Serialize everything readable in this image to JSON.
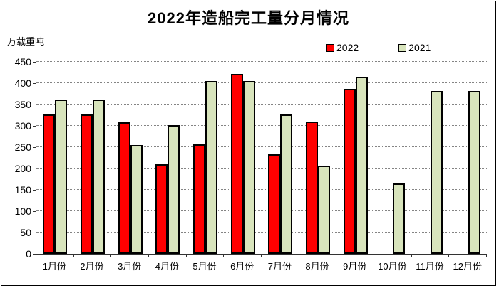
{
  "title": "2022年造船完工量分月情况",
  "y_axis_unit": "万载重吨",
  "legend": {
    "items": [
      {
        "label": "2022",
        "color": "#ff0000"
      },
      {
        "label": "2021",
        "color": "#d8e4bc"
      }
    ]
  },
  "chart_data": {
    "type": "bar",
    "title": "2022年造船完工量分月情况",
    "ylabel": "万载重吨",
    "xlabel": "",
    "categories": [
      "1月份",
      "2月份",
      "3月份",
      "4月份",
      "5月份",
      "6月份",
      "7月份",
      "8月份",
      "9月份",
      "10月份",
      "11月份",
      "12月份"
    ],
    "series": [
      {
        "name": "2022",
        "color": "#ff0000",
        "values": [
          327,
          327,
          309,
          210,
          256,
          422,
          234,
          310,
          386,
          null,
          null,
          null
        ]
      },
      {
        "name": "2021",
        "color": "#d8e4bc",
        "values": [
          361,
          361,
          255,
          302,
          405,
          405,
          327,
          207,
          415,
          165,
          381,
          381
        ]
      }
    ],
    "ylim": [
      0,
      450
    ],
    "yticks": [
      0,
      50,
      100,
      150,
      200,
      250,
      300,
      350,
      400,
      450
    ],
    "grid": "horizontal-dotted",
    "gridline_color": "#848484",
    "bar_border_color": "#000000",
    "legend_position": "top-right"
  }
}
